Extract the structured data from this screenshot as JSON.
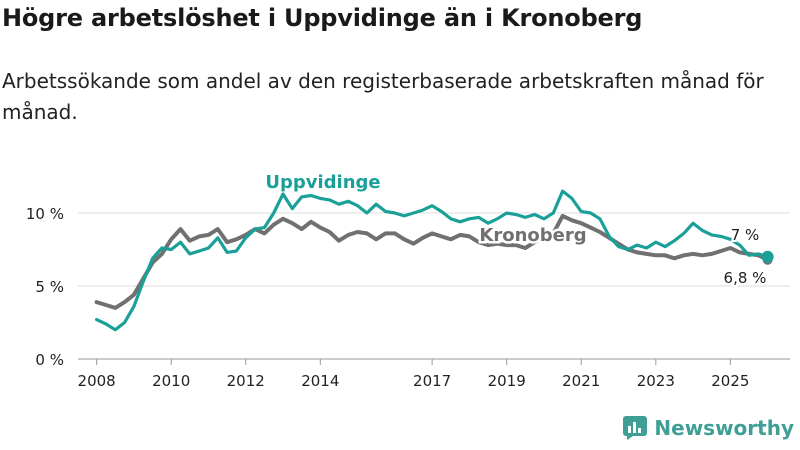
{
  "title": "Högre arbetslöshet i Uppvidinge än i Kronoberg",
  "subtitle": "Arbetssökande som andel av den registerbaserade arbetskraften månad för månad.",
  "brand": {
    "name": "Newsworthy",
    "icon": "bar-chart-logo-icon"
  },
  "colors": {
    "uppvidinge": "#1aa099",
    "kronoberg": "#707070",
    "grid": "#dddddd",
    "axis": "#999999",
    "text": "#222222"
  },
  "chart_data": {
    "type": "line",
    "x_unit": "year",
    "ylim": [
      0,
      11
    ],
    "y_ticks": [
      {
        "value": 0,
        "label": "0 %"
      },
      {
        "value": 5,
        "label": "5 %"
      },
      {
        "value": 10,
        "label": "10 %"
      }
    ],
    "xlim": [
      2007.5,
      2026.6
    ],
    "x_ticks": [
      {
        "value": 2008,
        "label": "2008"
      },
      {
        "value": 2010,
        "label": "2010"
      },
      {
        "value": 2012,
        "label": "2012"
      },
      {
        "value": 2014,
        "label": "2014"
      },
      {
        "value": 2017,
        "label": "2017"
      },
      {
        "value": 2019,
        "label": "2019"
      },
      {
        "value": 2021,
        "label": "2021"
      },
      {
        "value": 2023,
        "label": "2023"
      },
      {
        "value": 2025,
        "label": "2025"
      }
    ],
    "series": [
      {
        "name": "Kronoberg",
        "label": "Kronoberg",
        "last_label": "6,8 %",
        "points": [
          [
            2008.0,
            3.9
          ],
          [
            2008.25,
            3.7
          ],
          [
            2008.5,
            3.5
          ],
          [
            2008.75,
            3.9
          ],
          [
            2009.0,
            4.4
          ],
          [
            2009.25,
            5.5
          ],
          [
            2009.5,
            6.6
          ],
          [
            2009.75,
            7.2
          ],
          [
            2010.0,
            8.2
          ],
          [
            2010.25,
            8.9
          ],
          [
            2010.5,
            8.1
          ],
          [
            2010.75,
            8.4
          ],
          [
            2011.0,
            8.5
          ],
          [
            2011.25,
            8.9
          ],
          [
            2011.5,
            8.0
          ],
          [
            2011.75,
            8.2
          ],
          [
            2012.0,
            8.5
          ],
          [
            2012.25,
            8.9
          ],
          [
            2012.5,
            8.6
          ],
          [
            2012.75,
            9.2
          ],
          [
            2013.0,
            9.6
          ],
          [
            2013.25,
            9.3
          ],
          [
            2013.5,
            8.9
          ],
          [
            2013.75,
            9.4
          ],
          [
            2014.0,
            9.0
          ],
          [
            2014.25,
            8.7
          ],
          [
            2014.5,
            8.1
          ],
          [
            2014.75,
            8.5
          ],
          [
            2015.0,
            8.7
          ],
          [
            2015.25,
            8.6
          ],
          [
            2015.5,
            8.2
          ],
          [
            2015.75,
            8.6
          ],
          [
            2016.0,
            8.6
          ],
          [
            2016.25,
            8.2
          ],
          [
            2016.5,
            7.9
          ],
          [
            2016.75,
            8.3
          ],
          [
            2017.0,
            8.6
          ],
          [
            2017.25,
            8.4
          ],
          [
            2017.5,
            8.2
          ],
          [
            2017.75,
            8.5
          ],
          [
            2018.0,
            8.4
          ],
          [
            2018.25,
            8.0
          ],
          [
            2018.5,
            7.8
          ],
          [
            2018.75,
            7.9
          ],
          [
            2019.0,
            7.8
          ],
          [
            2019.25,
            7.8
          ],
          [
            2019.5,
            7.6
          ],
          [
            2019.75,
            8.0
          ],
          [
            2020.0,
            8.3
          ],
          [
            2020.25,
            8.6
          ],
          [
            2020.5,
            9.8
          ],
          [
            2020.75,
            9.5
          ],
          [
            2021.0,
            9.3
          ],
          [
            2021.25,
            9.0
          ],
          [
            2021.5,
            8.7
          ],
          [
            2021.75,
            8.3
          ],
          [
            2022.0,
            7.9
          ],
          [
            2022.25,
            7.5
          ],
          [
            2022.5,
            7.3
          ],
          [
            2022.75,
            7.2
          ],
          [
            2023.0,
            7.1
          ],
          [
            2023.25,
            7.1
          ],
          [
            2023.5,
            6.9
          ],
          [
            2023.75,
            7.1
          ],
          [
            2024.0,
            7.2
          ],
          [
            2024.25,
            7.1
          ],
          [
            2024.5,
            7.2
          ],
          [
            2024.75,
            7.4
          ],
          [
            2025.0,
            7.6
          ],
          [
            2025.25,
            7.3
          ],
          [
            2025.5,
            7.2
          ],
          [
            2025.75,
            7.1
          ],
          [
            2026.0,
            6.8
          ]
        ]
      },
      {
        "name": "Uppvidinge",
        "label": "Uppvidinge",
        "last_label": "7 %",
        "points": [
          [
            2008.0,
            2.7
          ],
          [
            2008.25,
            2.4
          ],
          [
            2008.5,
            2.0
          ],
          [
            2008.75,
            2.5
          ],
          [
            2009.0,
            3.6
          ],
          [
            2009.25,
            5.3
          ],
          [
            2009.5,
            6.9
          ],
          [
            2009.75,
            7.6
          ],
          [
            2010.0,
            7.5
          ],
          [
            2010.25,
            8.0
          ],
          [
            2010.5,
            7.2
          ],
          [
            2010.75,
            7.4
          ],
          [
            2011.0,
            7.6
          ],
          [
            2011.25,
            8.3
          ],
          [
            2011.5,
            7.3
          ],
          [
            2011.75,
            7.4
          ],
          [
            2012.0,
            8.3
          ],
          [
            2012.25,
            8.9
          ],
          [
            2012.5,
            9.0
          ],
          [
            2012.75,
            10.0
          ],
          [
            2013.0,
            11.3
          ],
          [
            2013.25,
            10.3
          ],
          [
            2013.5,
            11.1
          ],
          [
            2013.75,
            11.2
          ],
          [
            2014.0,
            11.0
          ],
          [
            2014.25,
            10.9
          ],
          [
            2014.5,
            10.6
          ],
          [
            2014.75,
            10.8
          ],
          [
            2015.0,
            10.5
          ],
          [
            2015.25,
            10.0
          ],
          [
            2015.5,
            10.6
          ],
          [
            2015.75,
            10.1
          ],
          [
            2016.0,
            10.0
          ],
          [
            2016.25,
            9.8
          ],
          [
            2016.5,
            10.0
          ],
          [
            2016.75,
            10.2
          ],
          [
            2017.0,
            10.5
          ],
          [
            2017.25,
            10.1
          ],
          [
            2017.5,
            9.6
          ],
          [
            2017.75,
            9.4
          ],
          [
            2018.0,
            9.6
          ],
          [
            2018.25,
            9.7
          ],
          [
            2018.5,
            9.3
          ],
          [
            2018.75,
            9.6
          ],
          [
            2019.0,
            10.0
          ],
          [
            2019.25,
            9.9
          ],
          [
            2019.5,
            9.7
          ],
          [
            2019.75,
            9.9
          ],
          [
            2020.0,
            9.6
          ],
          [
            2020.25,
            10.0
          ],
          [
            2020.5,
            11.5
          ],
          [
            2020.75,
            11.0
          ],
          [
            2021.0,
            10.1
          ],
          [
            2021.25,
            10.0
          ],
          [
            2021.5,
            9.6
          ],
          [
            2021.75,
            8.4
          ],
          [
            2022.0,
            7.7
          ],
          [
            2022.25,
            7.5
          ],
          [
            2022.5,
            7.8
          ],
          [
            2022.75,
            7.6
          ],
          [
            2023.0,
            8.0
          ],
          [
            2023.25,
            7.7
          ],
          [
            2023.5,
            8.1
          ],
          [
            2023.75,
            8.6
          ],
          [
            2024.0,
            9.3
          ],
          [
            2024.25,
            8.8
          ],
          [
            2024.5,
            8.5
          ],
          [
            2024.75,
            8.4
          ],
          [
            2025.0,
            8.2
          ],
          [
            2025.25,
            7.8
          ],
          [
            2025.5,
            7.1
          ],
          [
            2025.75,
            7.2
          ],
          [
            2026.0,
            7.0
          ]
        ]
      }
    ]
  }
}
